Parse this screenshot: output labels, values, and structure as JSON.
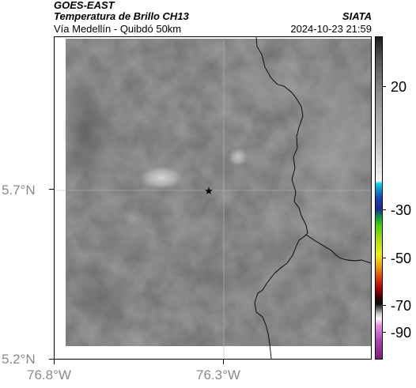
{
  "header": {
    "satellite": "GOES-EAST",
    "product": "Temperatura de Brillo CH13",
    "organization": "SIATA",
    "region": "Vía Medellín - Quibdó 50km",
    "timestamp": "2024-10-23 21:59"
  },
  "axes": {
    "lat_ticks": [
      "5.7°N",
      "5.2°N"
    ],
    "lon_ticks": [
      "76.8°W",
      "76.3°W"
    ]
  },
  "colorbar": {
    "tick_labels": [
      "20",
      "-30",
      "-50",
      "-70",
      "-90"
    ],
    "unit": ""
  },
  "map": {
    "marker": "star",
    "marker_color": "#000000",
    "background_tone": "#6e6e6e",
    "boundary_color": "#000000"
  }
}
